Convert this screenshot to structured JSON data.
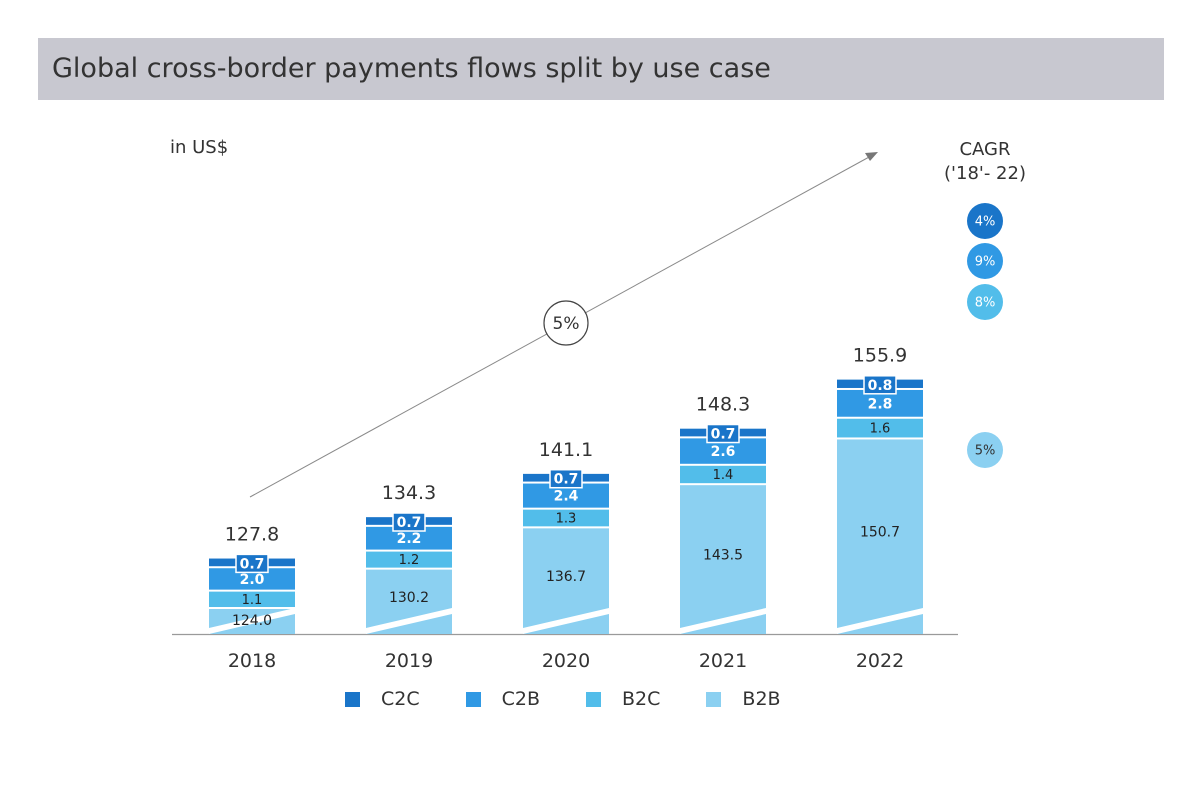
{
  "title": "Global cross-border payments flows split by use case",
  "unit_label": "in US$",
  "cagr_header_line1": "CAGR",
  "cagr_header_line2": "('18'- 22)",
  "colors": {
    "C2C": "#1a75c9",
    "C2B": "#3099e4",
    "B2C": "#52bdea",
    "B2B": "#8bd0f1",
    "title_bar": "#c8c8d0"
  },
  "chart_data": {
    "type": "bar",
    "stacked": true,
    "broken_axis": true,
    "categories": [
      "2018",
      "2019",
      "2020",
      "2021",
      "2022"
    ],
    "series": [
      {
        "name": "B2B",
        "values": [
          124.0,
          130.2,
          136.7,
          143.5,
          150.7
        ],
        "labels": [
          "124.0",
          "130.2",
          "136.7",
          "143.5",
          "150.7"
        ],
        "cagr": "5%"
      },
      {
        "name": "B2C",
        "values": [
          1.1,
          1.2,
          1.3,
          1.4,
          1.6
        ],
        "labels": [
          "1.1",
          "1.2",
          "1.3",
          "1.4",
          "1.6"
        ],
        "cagr": "8%"
      },
      {
        "name": "C2B",
        "values": [
          2.0,
          2.2,
          2.4,
          2.6,
          2.8
        ],
        "labels": [
          "2.0",
          "2.2",
          "2.4",
          "2.6",
          "2.8"
        ],
        "cagr": "9%"
      },
      {
        "name": "C2C",
        "values": [
          0.7,
          0.7,
          0.7,
          0.7,
          0.8
        ],
        "labels": [
          "0.7",
          "0.7",
          "0.7",
          "0.7",
          "0.8"
        ],
        "cagr": "4%"
      }
    ],
    "totals": [
      127.8,
      134.3,
      141.1,
      148.3,
      155.9
    ],
    "total_labels": [
      "127.8",
      "134.3",
      "141.1",
      "148.3",
      "155.9"
    ],
    "overall_cagr": "5%",
    "legend_order": [
      "C2C",
      "C2B",
      "B2C",
      "B2B"
    ],
    "legend_position": "bottom"
  }
}
